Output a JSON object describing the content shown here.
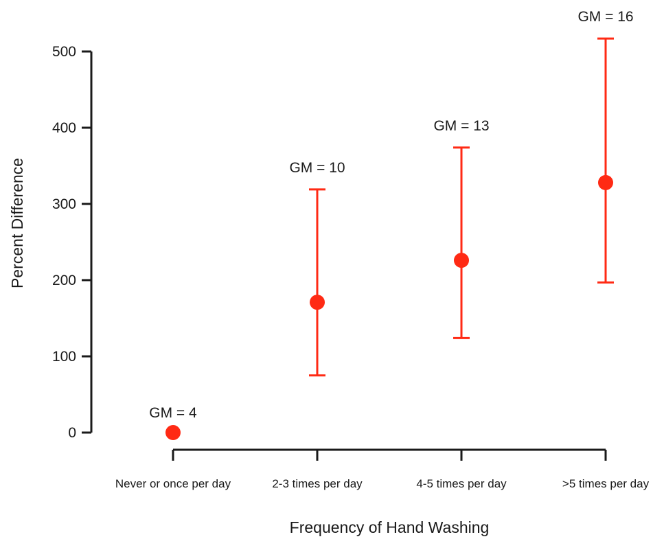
{
  "chart_data": {
    "type": "scatter",
    "xlabel": "Frequency of Hand Washing",
    "ylabel": "Percent Difference",
    "ylim": [
      0,
      500
    ],
    "yticks": [
      "0",
      "100",
      "200",
      "300",
      "400",
      "500"
    ],
    "categories": [
      "Never or once per day",
      "2-3 times per day",
      "4-5 times per day",
      ">5 times per day"
    ],
    "series": [
      {
        "values": [
          0,
          171,
          226,
          328
        ],
        "lower": [
          null,
          75,
          124,
          197
        ],
        "upper": [
          null,
          319,
          374,
          517
        ],
        "annotations": [
          "GM = 4",
          "GM = 10",
          "GM = 13",
          "GM = 16"
        ]
      }
    ],
    "grid": false,
    "colors": {
      "marker": "#ff2a14",
      "axis": "#1a1a1a"
    }
  }
}
